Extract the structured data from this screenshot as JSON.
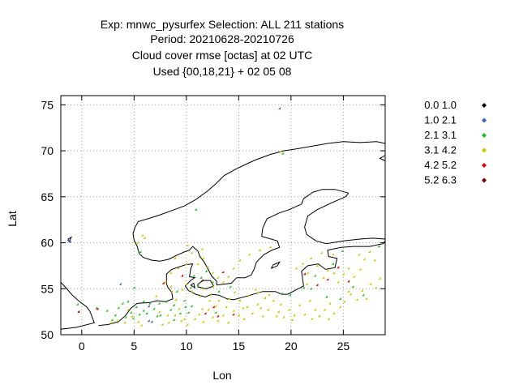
{
  "chart_data": {
    "type": "scatter",
    "title": [
      "Exp: mnwc_pysurfex   Selection: ALL    211 stations",
      "Period: 20210628-20210726",
      "Cloud cover rmse [octas] at  02 UTC",
      "Used {00,18,21} + 02 05 08"
    ],
    "xlabel": "Lon",
    "ylabel": "Lat",
    "xlim": [
      -2,
      29
    ],
    "ylim": [
      50,
      76
    ],
    "xticks": [
      0,
      5,
      10,
      15,
      20,
      25
    ],
    "yticks": [
      50,
      55,
      60,
      65,
      70,
      75
    ],
    "grid": true,
    "legend_position": "right",
    "legend": [
      {
        "label": "0.0 1.0",
        "color": "#000000"
      },
      {
        "label": "1.0 2.1",
        "color": "#3a66c8"
      },
      {
        "label": "2.1 3.1",
        "color": "#1fc21f"
      },
      {
        "label": "3.1 4.2",
        "color": "#c8c800"
      },
      {
        "label": "4.2 5.2",
        "color": "#e00000"
      },
      {
        "label": "5.2 6.3",
        "color": "#700000"
      }
    ],
    "series": [
      {
        "class": 1,
        "points": [
          [
            -1.2,
            60.2
          ],
          [
            -1.0,
            60.0
          ],
          [
            3.8,
            55.4
          ],
          [
            6.5,
            51.4
          ],
          [
            6.8,
            51.3
          ],
          [
            6.5,
            53.0
          ],
          [
            19.0,
            74.5
          ]
        ]
      },
      {
        "class": 2,
        "points": [
          [
            -0.3,
            53.2
          ],
          [
            1.5,
            52.8
          ],
          [
            2.5,
            52.5
          ],
          [
            3.0,
            51.5
          ],
          [
            3.3,
            52.0
          ],
          [
            3.6,
            52.8
          ],
          [
            4.0,
            53.3
          ],
          [
            4.5,
            53.5
          ],
          [
            4.3,
            51.8
          ],
          [
            4.8,
            52.3
          ],
          [
            5.0,
            51.7
          ],
          [
            5.3,
            52.9
          ],
          [
            5.6,
            52.1
          ],
          [
            6.0,
            52.5
          ],
          [
            6.0,
            53.5
          ],
          [
            6.3,
            52.2
          ],
          [
            6.6,
            53.3
          ],
          [
            7.0,
            52.7
          ],
          [
            7.3,
            51.9
          ],
          [
            7.5,
            53.3
          ],
          [
            7.6,
            52.0
          ],
          [
            8.2,
            53.5
          ],
          [
            8.6,
            52.6
          ],
          [
            8.9,
            53.1
          ],
          [
            9.2,
            54.6
          ],
          [
            9.5,
            52.2
          ],
          [
            9.9,
            53.6
          ],
          [
            10.0,
            52.9
          ],
          [
            10.3,
            52.3
          ],
          [
            10.6,
            53.0
          ],
          [
            10.5,
            55.0
          ],
          [
            10.8,
            56.3
          ],
          [
            11.2,
            55.3
          ],
          [
            11.5,
            56.1
          ],
          [
            12.0,
            56.8
          ],
          [
            12.6,
            55.6
          ],
          [
            13.2,
            54.6
          ],
          [
            14.3,
            55.1
          ],
          [
            19.2,
            54.4
          ],
          [
            20.0,
            54.2
          ],
          [
            21.3,
            55.0
          ],
          [
            22.0,
            54.9
          ],
          [
            23.5,
            54.0
          ],
          [
            24.8,
            53.8
          ],
          [
            26.0,
            55.1
          ],
          [
            27.0,
            54.2
          ],
          [
            28.5,
            59.5
          ],
          [
            25.0,
            59.0
          ],
          [
            24.1,
            57.6
          ],
          [
            22.4,
            56.3
          ],
          [
            19.3,
            69.6
          ],
          [
            11.0,
            63.5
          ],
          [
            5.7,
            58.9
          ],
          [
            5.1,
            55.0
          ],
          [
            8.9,
            51.5
          ],
          [
            12.9,
            52.3
          ]
        ]
      },
      {
        "class": 3,
        "points": [
          [
            2.9,
            51.2
          ],
          [
            3.5,
            51.4
          ],
          [
            4.2,
            51.2
          ],
          [
            5.8,
            50.9
          ],
          [
            7.8,
            51.0
          ],
          [
            8.4,
            51.2
          ],
          [
            9.0,
            52.0
          ],
          [
            9.6,
            51.4
          ],
          [
            10.2,
            51.0
          ],
          [
            10.9,
            51.6
          ],
          [
            11.3,
            52.1
          ],
          [
            11.7,
            51.3
          ],
          [
            12.2,
            52.6
          ],
          [
            12.6,
            51.8
          ],
          [
            13.1,
            51.4
          ],
          [
            13.6,
            52.0
          ],
          [
            14.1,
            51.2
          ],
          [
            14.6,
            52.5
          ],
          [
            15.1,
            52.0
          ],
          [
            15.6,
            51.6
          ],
          [
            15.9,
            52.9
          ],
          [
            16.4,
            52.2
          ],
          [
            16.9,
            53.2
          ],
          [
            17.4,
            51.9
          ],
          [
            17.9,
            52.6
          ],
          [
            18.4,
            53.6
          ],
          [
            18.9,
            52.4
          ],
          [
            19.4,
            51.8
          ],
          [
            19.9,
            52.6
          ],
          [
            20.4,
            52.0
          ],
          [
            20.9,
            53.1
          ],
          [
            21.4,
            52.1
          ],
          [
            21.9,
            53.6
          ],
          [
            22.4,
            52.6
          ],
          [
            22.8,
            51.9
          ],
          [
            23.3,
            52.6
          ],
          [
            23.8,
            53.3
          ],
          [
            24.2,
            52.2
          ],
          [
            24.8,
            52.9
          ],
          [
            25.2,
            53.5
          ],
          [
            25.8,
            54.3
          ],
          [
            26.4,
            53.7
          ],
          [
            26.9,
            54.7
          ],
          [
            27.3,
            53.8
          ],
          [
            27.7,
            55.4
          ],
          [
            28.2,
            55.0
          ],
          [
            28.6,
            56.0
          ],
          [
            16.0,
            54.1
          ],
          [
            17.0,
            54.5
          ],
          [
            18.0,
            54.2
          ],
          [
            15.2,
            53.6
          ],
          [
            14.2,
            53.8
          ],
          [
            13.2,
            53.6
          ],
          [
            12.4,
            54.2
          ],
          [
            11.4,
            54.1
          ],
          [
            10.6,
            54.6
          ],
          [
            9.7,
            54.8
          ],
          [
            8.7,
            54.6
          ],
          [
            8.1,
            55.6
          ],
          [
            8.6,
            56.6
          ],
          [
            9.3,
            57.1
          ],
          [
            10.1,
            57.6
          ],
          [
            9.0,
            58.2
          ],
          [
            10.6,
            58.8
          ],
          [
            11.6,
            59.2
          ],
          [
            10.2,
            59.6
          ],
          [
            11.2,
            57.6
          ],
          [
            11.7,
            58.2
          ],
          [
            12.1,
            57.3
          ],
          [
            12.6,
            56.6
          ],
          [
            13.1,
            56.1
          ],
          [
            13.6,
            55.6
          ],
          [
            14.1,
            56.2
          ],
          [
            14.6,
            57.1
          ],
          [
            15.2,
            58.0
          ],
          [
            16.1,
            58.6
          ],
          [
            17.1,
            59.1
          ],
          [
            18.1,
            59.4
          ],
          [
            12.6,
            55.1
          ],
          [
            14.7,
            54.5
          ],
          [
            16.7,
            54.8
          ],
          [
            9.1,
            53.7
          ],
          [
            7.2,
            54.1
          ],
          [
            20.6,
            57.1
          ],
          [
            21.2,
            57.6
          ],
          [
            21.7,
            56.6
          ],
          [
            22.6,
            57.4
          ],
          [
            23.2,
            56.1
          ],
          [
            23.6,
            56.9
          ],
          [
            24.2,
            56.6
          ],
          [
            24.6,
            55.6
          ],
          [
            25.1,
            56.5
          ],
          [
            25.6,
            57.1
          ],
          [
            26.1,
            56.2
          ],
          [
            26.7,
            57.0
          ],
          [
            27.1,
            58.1
          ],
          [
            26.6,
            58.6
          ],
          [
            27.6,
            58.9
          ],
          [
            28.1,
            58.0
          ],
          [
            23.0,
            58.8
          ],
          [
            22.0,
            58.2
          ],
          [
            24.1,
            58.6
          ],
          [
            21.6,
            55.4
          ],
          [
            25.6,
            54.6
          ],
          [
            19.1,
            53.2
          ],
          [
            17.6,
            53.9
          ],
          [
            6.1,
            60.4
          ],
          [
            5.4,
            59.9
          ],
          [
            5.9,
            60.7
          ],
          [
            19.1,
            69.8
          ],
          [
            8.6,
            55.1
          ],
          [
            10.1,
            55.4
          ],
          [
            11.7,
            54.9
          ],
          [
            12.9,
            53.0
          ],
          [
            9.4,
            52.7
          ],
          [
            5.5,
            51.3
          ],
          [
            4.9,
            51.9
          ],
          [
            4.5,
            52.6
          ],
          [
            7.5,
            52.4
          ],
          [
            8.3,
            52.0
          ],
          [
            9.9,
            51.6
          ],
          [
            11.6,
            52.7
          ],
          [
            12.3,
            53.6
          ],
          [
            13.9,
            52.9
          ],
          [
            15.5,
            52.8
          ],
          [
            17.2,
            52.8
          ],
          [
            18.7,
            51.9
          ],
          [
            20.2,
            51.5
          ],
          [
            22.1,
            51.6
          ],
          [
            23.7,
            51.6
          ]
        ]
      },
      {
        "class": 4,
        "points": [
          [
            1.6,
            52.7
          ],
          [
            7.9,
            55.5
          ],
          [
            11.9,
            52.2
          ],
          [
            12.7,
            52.9
          ],
          [
            13.6,
            56.7
          ],
          [
            14.6,
            52.1
          ],
          [
            21.4,
            56.5
          ],
          [
            22.6,
            55.3
          ],
          [
            23.6,
            55.9
          ],
          [
            24.6,
            57.2
          ],
          [
            25.6,
            55.7
          ],
          [
            13.1,
            51.9
          ],
          [
            9.7,
            56.3
          ]
        ]
      },
      {
        "class": 5,
        "points": [
          [
            -0.2,
            52.4
          ],
          [
            11.6,
            55.8
          ]
        ]
      }
    ]
  }
}
